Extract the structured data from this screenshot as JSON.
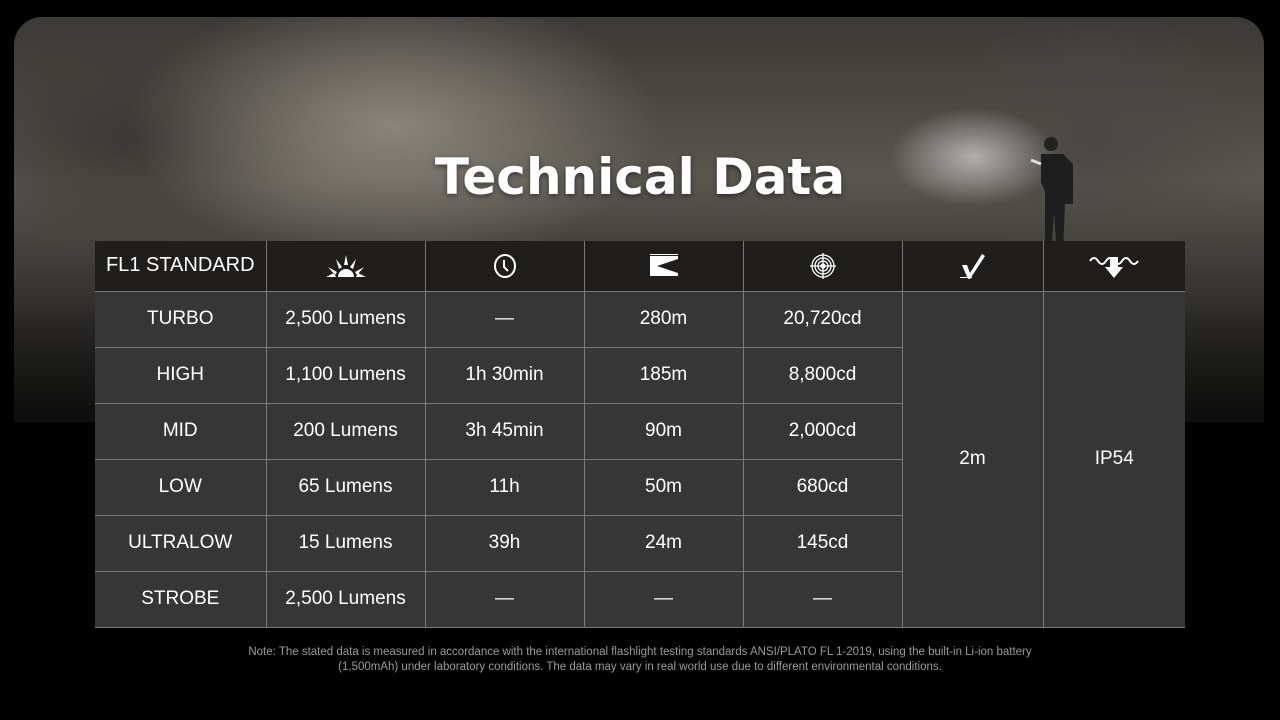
{
  "title": "Technical Data",
  "table": {
    "model": "FL1 STANDARD",
    "header_icons": [
      "brightness-icon",
      "runtime-clock-icon",
      "beam-distance-icon",
      "intensity-target-icon",
      "impact-resistance-icon",
      "waterproof-icon"
    ],
    "rows": [
      {
        "mode": "TURBO",
        "output": "2,500 Lumens",
        "runtime": "—",
        "distance": "280m",
        "intensity": "20,720cd"
      },
      {
        "mode": "HIGH",
        "output": "1,100 Lumens",
        "runtime": "1h 30min",
        "distance": "185m",
        "intensity": "8,800cd"
      },
      {
        "mode": "MID",
        "output": "200 Lumens",
        "runtime": "3h 45min",
        "distance": "90m",
        "intensity": "2,000cd"
      },
      {
        "mode": "LOW",
        "output": "65 Lumens",
        "runtime": "11h",
        "distance": "50m",
        "intensity": "680cd"
      },
      {
        "mode": "ULTRALOW",
        "output": "15 Lumens",
        "runtime": "39h",
        "distance": "24m",
        "intensity": "145cd"
      },
      {
        "mode": "STROBE",
        "output": "2,500 Lumens",
        "runtime": "—",
        "distance": "—",
        "intensity": "—"
      }
    ],
    "impact": "2m",
    "waterproof": "IP54"
  },
  "note_line1": "Note: The stated data is measured in accordance with the international flashlight testing standards ANSI/PLATO FL 1-2019, using the built-in Li-ion battery",
  "note_line2": "(1,500mAh) under laboratory conditions. The data may vary in real world use due to different environmental conditions."
}
